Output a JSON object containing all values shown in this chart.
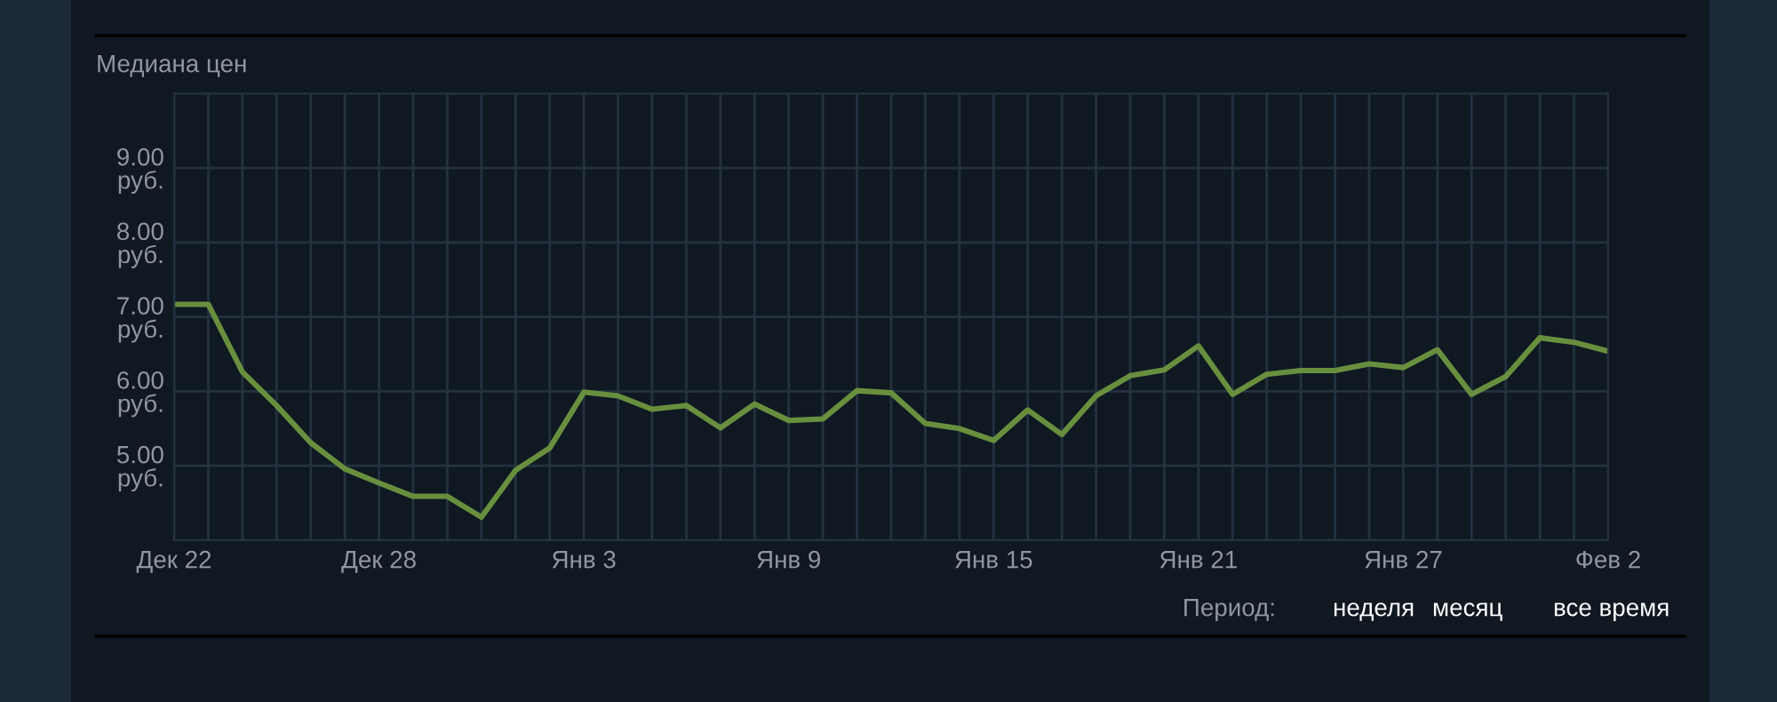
{
  "chart_data": {
    "type": "line",
    "title": "Медиана цен",
    "categories": [
      "Дек 22",
      null,
      null,
      null,
      null,
      null,
      "Дек 28",
      null,
      null,
      null,
      null,
      null,
      "Янв 3",
      null,
      null,
      null,
      null,
      null,
      "Янв 9",
      null,
      null,
      null,
      null,
      null,
      "Янв 15",
      null,
      null,
      null,
      null,
      null,
      "Янв 21",
      null,
      null,
      null,
      null,
      null,
      "Янв 27",
      null,
      null,
      null,
      null,
      null,
      "Фев 2"
    ],
    "series": [
      {
        "color": "#688f3e",
        "values": [
          7.17,
          7.17,
          6.26,
          5.81,
          5.31,
          4.96,
          4.77,
          4.59,
          4.59,
          4.31,
          4.94,
          5.24,
          5.99,
          5.94,
          5.76,
          5.81,
          5.51,
          5.83,
          5.61,
          5.63,
          6.01,
          5.98,
          5.57,
          5.5,
          5.34,
          5.75,
          5.42,
          5.94,
          6.21,
          6.29,
          6.61,
          5.96,
          6.23,
          6.28,
          6.28,
          6.37,
          6.32,
          6.56,
          5.96,
          6.2,
          6.72,
          6.66,
          6.54
        ]
      }
    ],
    "ylim": [
      4,
      10
    ],
    "yticks": [
      {
        "value": 5,
        "label": "5.00 руб."
      },
      {
        "value": 6,
        "label": "6.00 руб."
      },
      {
        "value": 7,
        "label": "7.00 руб."
      },
      {
        "value": 8,
        "label": "8.00 руб."
      },
      {
        "value": 9,
        "label": "9.00 руб."
      }
    ],
    "grid": true,
    "marker": "none",
    "line_style": "solid",
    "legend": false,
    "annotations": [
      "Период:",
      "неделя",
      "месяц",
      "все время"
    ]
  }
}
